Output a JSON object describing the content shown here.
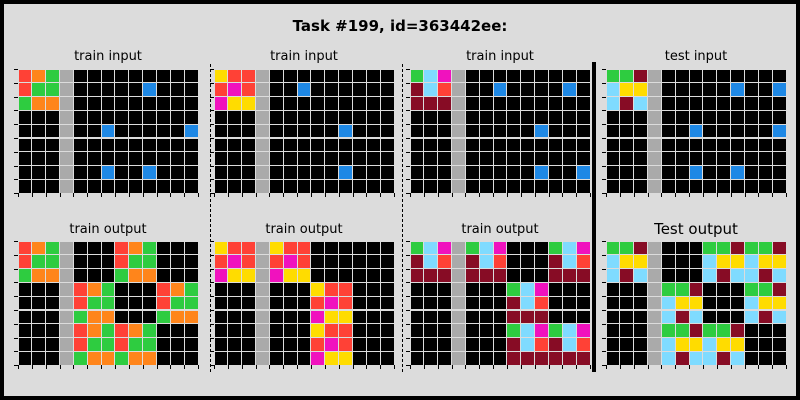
{
  "title": "Task #199, id=363442ee:",
  "palette": {
    "0": "#000000",
    "1": "#1e88e5",
    "2": "#ff4136",
    "3": "#2ecc40",
    "4": "#ffdc00",
    "5": "#aaaaaa",
    "6": "#f012be",
    "7": "#ff851b",
    "8": "#7fdbff",
    "9": "#870c25"
  },
  "panels": [
    {
      "label": "train input",
      "grid": [
        [
          2,
          7,
          3,
          5,
          0,
          0,
          0,
          0,
          0,
          0,
          0,
          0,
          0
        ],
        [
          2,
          3,
          3,
          5,
          0,
          0,
          0,
          0,
          0,
          1,
          0,
          0,
          0
        ],
        [
          3,
          7,
          7,
          5,
          0,
          0,
          0,
          0,
          0,
          0,
          0,
          0,
          0
        ],
        [
          0,
          0,
          0,
          5,
          0,
          0,
          0,
          0,
          0,
          0,
          0,
          0,
          0
        ],
        [
          0,
          0,
          0,
          5,
          0,
          0,
          1,
          0,
          0,
          0,
          0,
          0,
          1
        ],
        [
          0,
          0,
          0,
          5,
          0,
          0,
          0,
          0,
          0,
          0,
          0,
          0,
          0
        ],
        [
          0,
          0,
          0,
          5,
          0,
          0,
          0,
          0,
          0,
          0,
          0,
          0,
          0
        ],
        [
          0,
          0,
          0,
          5,
          0,
          0,
          1,
          0,
          0,
          1,
          0,
          0,
          0
        ],
        [
          0,
          0,
          0,
          5,
          0,
          0,
          0,
          0,
          0,
          0,
          0,
          0,
          0
        ]
      ]
    },
    {
      "label": "train input",
      "grid": [
        [
          4,
          2,
          2,
          5,
          0,
          0,
          0,
          0,
          0,
          0,
          0,
          0,
          0
        ],
        [
          2,
          6,
          2,
          5,
          0,
          0,
          1,
          0,
          0,
          0,
          0,
          0,
          0
        ],
        [
          6,
          4,
          4,
          5,
          0,
          0,
          0,
          0,
          0,
          0,
          0,
          0,
          0
        ],
        [
          0,
          0,
          0,
          5,
          0,
          0,
          0,
          0,
          0,
          0,
          0,
          0,
          0
        ],
        [
          0,
          0,
          0,
          5,
          0,
          0,
          0,
          0,
          0,
          1,
          0,
          0,
          0
        ],
        [
          0,
          0,
          0,
          5,
          0,
          0,
          0,
          0,
          0,
          0,
          0,
          0,
          0
        ],
        [
          0,
          0,
          0,
          5,
          0,
          0,
          0,
          0,
          0,
          0,
          0,
          0,
          0
        ],
        [
          0,
          0,
          0,
          5,
          0,
          0,
          0,
          0,
          0,
          1,
          0,
          0,
          0
        ],
        [
          0,
          0,
          0,
          5,
          0,
          0,
          0,
          0,
          0,
          0,
          0,
          0,
          0
        ]
      ]
    },
    {
      "label": "train input",
      "grid": [
        [
          3,
          8,
          6,
          5,
          0,
          0,
          0,
          0,
          0,
          0,
          0,
          0,
          0
        ],
        [
          9,
          8,
          2,
          5,
          0,
          0,
          1,
          0,
          0,
          0,
          0,
          1,
          0
        ],
        [
          9,
          9,
          9,
          5,
          0,
          0,
          0,
          0,
          0,
          0,
          0,
          0,
          0
        ],
        [
          0,
          0,
          0,
          5,
          0,
          0,
          0,
          0,
          0,
          0,
          0,
          0,
          0
        ],
        [
          0,
          0,
          0,
          5,
          0,
          0,
          0,
          0,
          0,
          1,
          0,
          0,
          0
        ],
        [
          0,
          0,
          0,
          5,
          0,
          0,
          0,
          0,
          0,
          0,
          0,
          0,
          0
        ],
        [
          0,
          0,
          0,
          5,
          0,
          0,
          0,
          0,
          0,
          0,
          0,
          0,
          0
        ],
        [
          0,
          0,
          0,
          5,
          0,
          0,
          0,
          0,
          0,
          1,
          0,
          0,
          1
        ],
        [
          0,
          0,
          0,
          5,
          0,
          0,
          0,
          0,
          0,
          0,
          0,
          0,
          0
        ]
      ]
    },
    {
      "label": "test input",
      "grid": [
        [
          3,
          3,
          9,
          5,
          0,
          0,
          0,
          0,
          0,
          0,
          0,
          0,
          0
        ],
        [
          8,
          4,
          4,
          5,
          0,
          0,
          0,
          0,
          0,
          1,
          0,
          0,
          1
        ],
        [
          8,
          9,
          8,
          5,
          0,
          0,
          0,
          0,
          0,
          0,
          0,
          0,
          0
        ],
        [
          0,
          0,
          0,
          5,
          0,
          0,
          0,
          0,
          0,
          0,
          0,
          0,
          0
        ],
        [
          0,
          0,
          0,
          5,
          0,
          0,
          1,
          0,
          0,
          0,
          0,
          0,
          1
        ],
        [
          0,
          0,
          0,
          5,
          0,
          0,
          0,
          0,
          0,
          0,
          0,
          0,
          0
        ],
        [
          0,
          0,
          0,
          5,
          0,
          0,
          0,
          0,
          0,
          0,
          0,
          0,
          0
        ],
        [
          0,
          0,
          0,
          5,
          0,
          0,
          1,
          0,
          0,
          1,
          0,
          0,
          0
        ],
        [
          0,
          0,
          0,
          5,
          0,
          0,
          0,
          0,
          0,
          0,
          0,
          0,
          0
        ]
      ]
    },
    {
      "label": "train output",
      "grid": [
        [
          2,
          7,
          3,
          5,
          0,
          0,
          0,
          2,
          7,
          3,
          0,
          0,
          0
        ],
        [
          2,
          3,
          3,
          5,
          0,
          0,
          0,
          2,
          3,
          3,
          0,
          0,
          0
        ],
        [
          3,
          7,
          7,
          5,
          0,
          0,
          0,
          3,
          7,
          7,
          0,
          0,
          0
        ],
        [
          0,
          0,
          0,
          5,
          2,
          7,
          3,
          0,
          0,
          0,
          2,
          7,
          3
        ],
        [
          0,
          0,
          0,
          5,
          2,
          3,
          3,
          0,
          0,
          0,
          2,
          3,
          3
        ],
        [
          0,
          0,
          0,
          5,
          3,
          7,
          7,
          0,
          0,
          0,
          3,
          7,
          7
        ],
        [
          0,
          0,
          0,
          5,
          2,
          7,
          3,
          2,
          7,
          3,
          0,
          0,
          0
        ],
        [
          0,
          0,
          0,
          5,
          2,
          3,
          3,
          2,
          3,
          3,
          0,
          0,
          0
        ],
        [
          0,
          0,
          0,
          5,
          3,
          7,
          7,
          3,
          7,
          7,
          0,
          0,
          0
        ]
      ]
    },
    {
      "label": "train output",
      "grid": [
        [
          4,
          2,
          2,
          5,
          4,
          2,
          2,
          0,
          0,
          0,
          0,
          0,
          0
        ],
        [
          2,
          6,
          2,
          5,
          2,
          6,
          2,
          0,
          0,
          0,
          0,
          0,
          0
        ],
        [
          6,
          4,
          4,
          5,
          6,
          4,
          4,
          0,
          0,
          0,
          0,
          0,
          0
        ],
        [
          0,
          0,
          0,
          5,
          0,
          0,
          0,
          4,
          2,
          2,
          0,
          0,
          0
        ],
        [
          0,
          0,
          0,
          5,
          0,
          0,
          0,
          2,
          6,
          2,
          0,
          0,
          0
        ],
        [
          0,
          0,
          0,
          5,
          0,
          0,
          0,
          6,
          4,
          4,
          0,
          0,
          0
        ],
        [
          0,
          0,
          0,
          5,
          0,
          0,
          0,
          4,
          2,
          2,
          0,
          0,
          0
        ],
        [
          0,
          0,
          0,
          5,
          0,
          0,
          0,
          2,
          6,
          2,
          0,
          0,
          0
        ],
        [
          0,
          0,
          0,
          5,
          0,
          0,
          0,
          6,
          4,
          4,
          0,
          0,
          0
        ]
      ]
    },
    {
      "label": "train output",
      "grid": [
        [
          3,
          8,
          6,
          5,
          3,
          8,
          6,
          0,
          0,
          0,
          3,
          8,
          6
        ],
        [
          9,
          8,
          2,
          5,
          9,
          8,
          2,
          0,
          0,
          0,
          9,
          8,
          2
        ],
        [
          9,
          9,
          9,
          5,
          9,
          9,
          9,
          0,
          0,
          0,
          9,
          9,
          9
        ],
        [
          0,
          0,
          0,
          5,
          0,
          0,
          0,
          3,
          8,
          6,
          0,
          0,
          0
        ],
        [
          0,
          0,
          0,
          5,
          0,
          0,
          0,
          9,
          8,
          2,
          0,
          0,
          0
        ],
        [
          0,
          0,
          0,
          5,
          0,
          0,
          0,
          9,
          9,
          9,
          0,
          0,
          0
        ],
        [
          0,
          0,
          0,
          5,
          0,
          0,
          0,
          3,
          8,
          6,
          3,
          8,
          6
        ],
        [
          0,
          0,
          0,
          5,
          0,
          0,
          0,
          9,
          8,
          2,
          9,
          8,
          2
        ],
        [
          0,
          0,
          0,
          5,
          0,
          0,
          0,
          9,
          9,
          9,
          9,
          9,
          9
        ]
      ]
    },
    {
      "label": "Test output",
      "grid": [
        [
          3,
          3,
          9,
          5,
          0,
          0,
          0,
          3,
          3,
          9,
          3,
          3,
          9
        ],
        [
          8,
          4,
          4,
          5,
          0,
          0,
          0,
          8,
          4,
          4,
          8,
          4,
          4
        ],
        [
          8,
          9,
          8,
          5,
          0,
          0,
          0,
          8,
          9,
          8,
          8,
          9,
          8
        ],
        [
          0,
          0,
          0,
          5,
          3,
          3,
          9,
          0,
          0,
          0,
          3,
          3,
          9
        ],
        [
          0,
          0,
          0,
          5,
          8,
          4,
          4,
          0,
          0,
          0,
          8,
          4,
          4
        ],
        [
          0,
          0,
          0,
          5,
          8,
          9,
          8,
          0,
          0,
          0,
          8,
          9,
          8
        ],
        [
          0,
          0,
          0,
          5,
          3,
          3,
          9,
          3,
          3,
          9,
          0,
          0,
          0
        ],
        [
          0,
          0,
          0,
          5,
          8,
          4,
          4,
          8,
          4,
          4,
          0,
          0,
          0
        ],
        [
          0,
          0,
          0,
          5,
          8,
          9,
          8,
          8,
          9,
          8,
          0,
          0,
          0
        ]
      ]
    }
  ]
}
